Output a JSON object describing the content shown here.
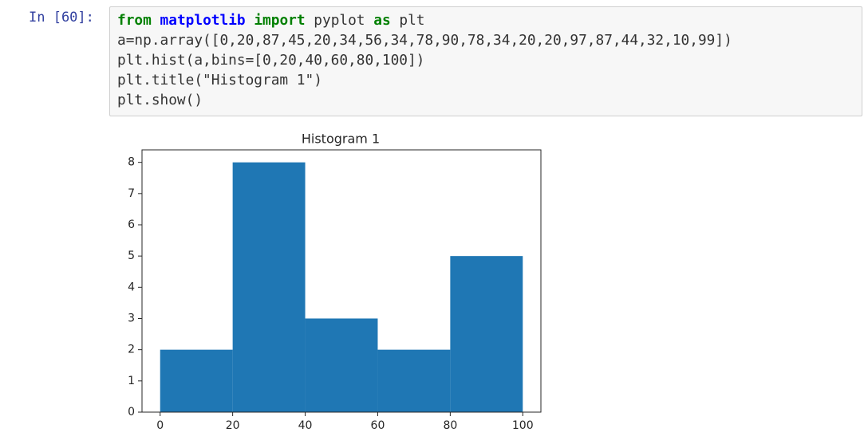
{
  "cell": {
    "prompt": "In [60]:",
    "code": {
      "first_line": [
        "from",
        "matplotlib",
        "import",
        "pyplot",
        "as",
        "plt"
      ],
      "lines": [
        "a=np.array([0,20,87,45,20,34,56,34,78,90,78,34,20,20,97,87,44,32,10,99])",
        "plt.hist(a,bins=[0,20,40,60,80,100])",
        "plt.title(\"Histogram 1\")",
        "plt.show()"
      ]
    }
  },
  "chart_data": {
    "type": "histogram",
    "title": "Histogram 1",
    "bins": [
      0,
      20,
      40,
      60,
      80,
      100
    ],
    "counts": [
      2,
      8,
      3,
      2,
      5
    ],
    "color": "#1f77b4",
    "xlim": [
      -5,
      105
    ],
    "xticks": [
      0,
      20,
      40,
      60,
      80,
      100
    ],
    "ylim": [
      0,
      8.4
    ],
    "yticks": [
      0,
      1,
      2,
      3,
      4,
      5,
      6,
      7,
      8
    ],
    "grid": false
  }
}
